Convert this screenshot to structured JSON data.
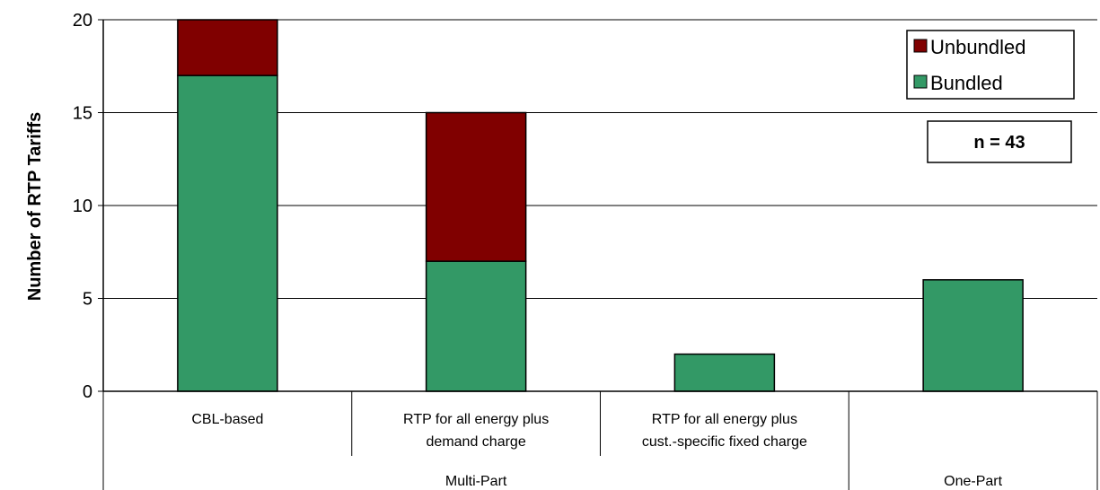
{
  "chart_data": {
    "type": "bar",
    "stacked": true,
    "ylabel": "Number of RTP Tariffs",
    "xlabel": "",
    "ylim": [
      0,
      20
    ],
    "yticks": [
      0,
      5,
      10,
      15,
      20
    ],
    "grid": true,
    "legend_position": "top-right",
    "categories": [
      "CBL-based",
      "RTP for all energy plus demand charge",
      "RTP for all energy plus cust.-specific fixed charge",
      ""
    ],
    "category_lines": [
      [
        "CBL-based"
      ],
      [
        "RTP for all energy plus",
        "demand charge"
      ],
      [
        "RTP for all energy plus",
        "cust.-specific fixed charge"
      ],
      []
    ],
    "groups": [
      {
        "label": "Multi-Part",
        "categories": [
          0,
          1,
          2
        ]
      },
      {
        "label": "One-Part",
        "categories": [
          3
        ]
      }
    ],
    "series": [
      {
        "name": "Bundled",
        "values": [
          17,
          7,
          2,
          6
        ],
        "color": "#339966"
      },
      {
        "name": "Unbundled",
        "values": [
          3,
          8,
          0,
          0
        ],
        "color": "#800000"
      }
    ],
    "annotations": [
      "n = 43"
    ]
  }
}
